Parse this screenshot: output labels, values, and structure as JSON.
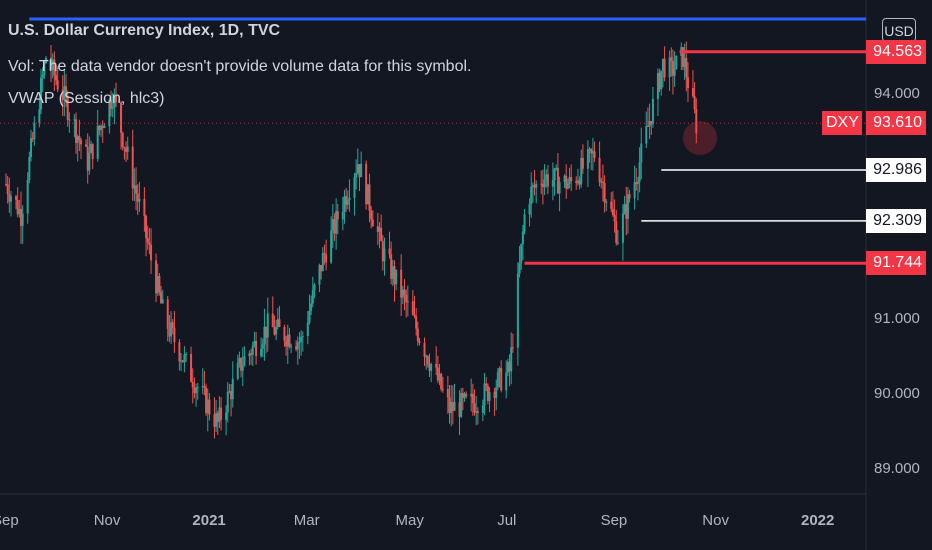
{
  "legend": {
    "title": "U.S. Dollar Currency Index, 1D, TVC",
    "volume_note": "Vol: The data vendor doesn't provide volume data for this symbol.",
    "vwap": "VWAP (Session, hlc3)"
  },
  "currency_button": "USD",
  "symbol_tag": "DXY",
  "colors": {
    "background": "#131722",
    "up_candle": "#26a69a",
    "down_candle": "#ef5350",
    "red_line": "#f23645",
    "blue_line": "#2962ff",
    "white_line": "#ffffff",
    "text": "#b2b5be"
  },
  "chart_data": {
    "type": "candlestick",
    "title": "U.S. Dollar Currency Index, 1D, TVC",
    "y_axis_ticks": [
      "94.000",
      "91.000",
      "90.000",
      "89.000"
    ],
    "x_axis_ticks": [
      "Sep",
      "Nov",
      "2021",
      "Mar",
      "May",
      "Jul",
      "Sep",
      "Nov",
      "2022"
    ],
    "ylim": [
      88.6,
      95.3
    ],
    "current_price": 93.61,
    "path_dates": [
      "2020-09-01",
      "2020-09-10",
      "2020-09-25",
      "2020-10-05",
      "2020-10-20",
      "2020-11-04",
      "2020-11-20",
      "2020-12-05",
      "2020-12-20",
      "2021-01-06",
      "2021-01-20",
      "2021-02-05",
      "2021-02-25",
      "2021-03-10",
      "2021-03-31",
      "2021-04-15",
      "2021-05-01",
      "2021-05-25",
      "2021-06-10",
      "2021-06-30",
      "2021-07-10",
      "2021-07-20",
      "2021-08-05",
      "2021-08-20",
      "2021-09-03",
      "2021-09-15",
      "2021-09-30",
      "2021-10-05",
      "2021-10-12",
      "2021-10-20"
    ],
    "path_values": [
      92.8,
      92.4,
      94.5,
      94.0,
      93.1,
      94.0,
      92.5,
      91.0,
      90.3,
      89.6,
      90.4,
      90.9,
      90.7,
      91.8,
      93.1,
      91.9,
      91.1,
      89.8,
      89.9,
      90.3,
      92.6,
      92.9,
      92.8,
      93.2,
      92.1,
      93.0,
      94.4,
      94.3,
      94.5,
      93.6
    ],
    "levels": [
      {
        "value": 95.0,
        "label": "",
        "color": "#2962ff",
        "from": "2020-09-15"
      },
      {
        "value": 94.563,
        "label": "94.563",
        "color": "#f23645",
        "from": "2021-10-10"
      },
      {
        "value": 92.986,
        "label": "92.986",
        "color": "#ffffff",
        "from": "2021-09-29"
      },
      {
        "value": 92.309,
        "label": "92.309",
        "color": "#ffffff",
        "from": "2021-09-17"
      },
      {
        "value": 91.744,
        "label": "91.744",
        "color": "#f23645",
        "from": "2021-07-09"
      }
    ],
    "last_price_label": "93.610"
  }
}
